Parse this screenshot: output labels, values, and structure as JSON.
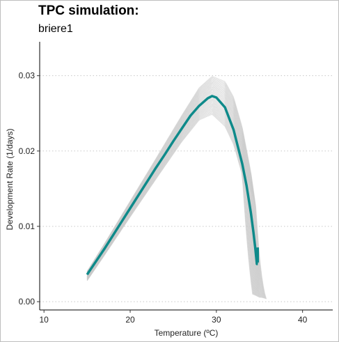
{
  "chart_data": {
    "type": "line",
    "title": "TPC simulation:",
    "subtitle": "briere1",
    "xlabel": "Temperature (ºC)",
    "ylabel": "Development Rate (1/days)",
    "xlim": [
      9.5,
      43.5
    ],
    "ylim": [
      -0.0011,
      0.0345
    ],
    "x_ticks": [
      10,
      20,
      30,
      40
    ],
    "x_tick_labels": [
      "10",
      "20",
      "30",
      "40"
    ],
    "y_ticks": [
      0.0,
      0.01,
      0.02,
      0.03
    ],
    "y_tick_labels": [
      "0.00",
      "0.01",
      "0.02",
      "0.03"
    ],
    "grid": "horizontal dotted",
    "series": [
      {
        "role": "main fit",
        "color": "#0e8a8a",
        "x": [
          15,
          16,
          17,
          18,
          19,
          20,
          21,
          22,
          23,
          24,
          25,
          26,
          27,
          28,
          29,
          29.5,
          30,
          31,
          32,
          33,
          33.5,
          34,
          34.3,
          34.5,
          34.7,
          34.8
        ],
        "y": [
          0.0036,
          0.0053,
          0.007,
          0.0088,
          0.0106,
          0.0124,
          0.0142,
          0.016,
          0.0178,
          0.0195,
          0.0213,
          0.023,
          0.0247,
          0.026,
          0.027,
          0.0273,
          0.0271,
          0.0258,
          0.0228,
          0.0183,
          0.0154,
          0.0118,
          0.0092,
          0.0072,
          0.005,
          0.005
        ]
      }
    ],
    "band": {
      "role": "bootstrap simulations",
      "color": "#c8c8c8",
      "x": [
        15,
        17,
        20,
        23,
        26,
        28,
        29.5,
        31,
        32,
        33,
        34,
        34.5,
        35,
        35.5,
        35.8
      ],
      "upper": [
        0.0043,
        0.008,
        0.0138,
        0.0196,
        0.0255,
        0.0293,
        0.031,
        0.0305,
        0.0285,
        0.0245,
        0.0185,
        0.0145,
        0.01,
        0.006,
        0.004
      ],
      "lower": [
        0.0025,
        0.0058,
        0.0108,
        0.0157,
        0.0205,
        0.0232,
        0.0238,
        0.022,
        0.0195,
        0.0155,
        0.01,
        0.006,
        0.001,
        0.001,
        0.001
      ],
      "n_curves": 40
    }
  }
}
